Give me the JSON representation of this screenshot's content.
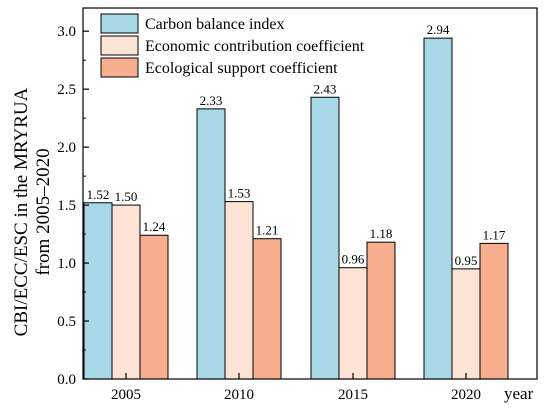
{
  "chart_data": {
    "type": "bar",
    "ylabel_lines": [
      "CBI/ECC/ESC in the MRYRUA",
      "from 2005–2020"
    ],
    "xlabel": "year",
    "categories": [
      "2005",
      "2010",
      "2015",
      "2020"
    ],
    "ylim": [
      0,
      3.2
    ],
    "yticks": [
      "0.0",
      "0.5",
      "1.0",
      "1.5",
      "2.0",
      "2.5",
      "3.0"
    ],
    "grid": false,
    "legend_position": "top-left",
    "series": [
      {
        "name": "Carbon balance index",
        "color": "#a8d8e8",
        "values": [
          1.52,
          2.33,
          2.43,
          2.94
        ],
        "labels": [
          "1.52",
          "2.33",
          "2.43",
          "2.94"
        ]
      },
      {
        "name": "Economic contribution coefficient",
        "color": "#fde3d6",
        "values": [
          1.5,
          1.53,
          0.96,
          0.95
        ],
        "labels": [
          "1.50",
          "1.53",
          "0.96",
          "0.95"
        ]
      },
      {
        "name": "Ecological support coefficient",
        "color": "#f7ae8f",
        "values": [
          1.24,
          1.21,
          1.18,
          1.17
        ],
        "labels": [
          "1.24",
          "1.21",
          "1.18",
          "1.17"
        ]
      }
    ]
  }
}
